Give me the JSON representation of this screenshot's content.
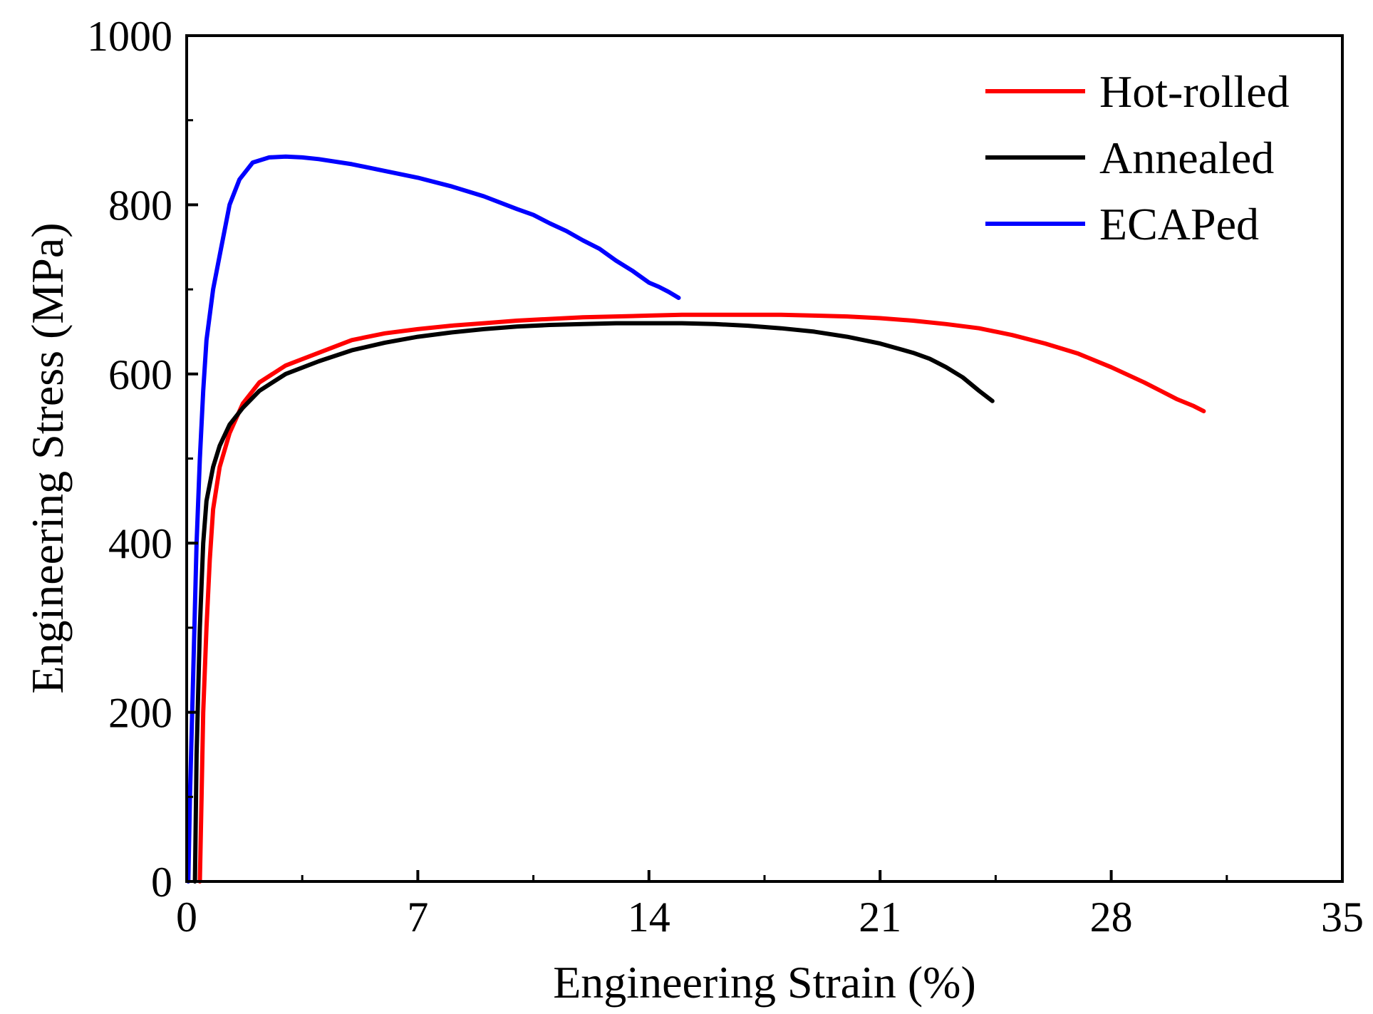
{
  "chart_data": {
    "type": "line",
    "title": "",
    "xlabel": "Engineering Strain (%)",
    "ylabel": "Engineering Stress (MPa)",
    "xlim": [
      0,
      35
    ],
    "ylim": [
      0,
      1000
    ],
    "xticks": [
      0,
      7,
      14,
      21,
      28,
      35
    ],
    "xtick_labels": [
      "0",
      "7",
      "14",
      "21",
      "28",
      "35"
    ],
    "yticks": [
      0,
      200,
      400,
      600,
      800,
      1000
    ],
    "ytick_labels": [
      "0",
      "200",
      "400",
      "600",
      "800",
      "1000"
    ],
    "grid": false,
    "legend_position": "top-right",
    "series": [
      {
        "name": "Hot-rolled",
        "color": "#ff0000",
        "x": [
          0.4,
          0.45,
          0.5,
          0.6,
          0.7,
          0.8,
          1.0,
          1.3,
          1.7,
          2.2,
          3.0,
          4.0,
          5.0,
          6.0,
          7.0,
          8.0,
          9.0,
          10.0,
          11.0,
          12.0,
          13.0,
          14.0,
          15.0,
          16.0,
          17.0,
          18.0,
          19.0,
          20.0,
          21.0,
          22.0,
          23.0,
          24.0,
          25.0,
          26.0,
          27.0,
          28.0,
          29.0,
          29.5,
          30.0,
          30.5,
          30.8
        ],
        "y": [
          0,
          100,
          200,
          300,
          380,
          440,
          490,
          530,
          565,
          590,
          610,
          625,
          640,
          648,
          653,
          657,
          660,
          663,
          665,
          667,
          668,
          669,
          670,
          670,
          670,
          670,
          669,
          668,
          666,
          663,
          659,
          654,
          646,
          636,
          624,
          608,
          590,
          580,
          570,
          562,
          556
        ]
      },
      {
        "name": "Annealed",
        "color": "#000000",
        "x": [
          0.25,
          0.3,
          0.4,
          0.5,
          0.6,
          0.8,
          1.0,
          1.3,
          1.7,
          2.2,
          3.0,
          4.0,
          5.0,
          6.0,
          7.0,
          8.0,
          9.0,
          10.0,
          11.0,
          12.0,
          13.0,
          14.0,
          15.0,
          16.0,
          17.0,
          18.0,
          19.0,
          20.0,
          21.0,
          22.0,
          22.5,
          23.0,
          23.5,
          24.0,
          24.4
        ],
        "y": [
          0,
          150,
          300,
          400,
          450,
          490,
          515,
          540,
          560,
          580,
          600,
          615,
          628,
          637,
          644,
          649,
          653,
          656,
          658,
          659,
          660,
          660,
          660,
          659,
          657,
          654,
          650,
          644,
          636,
          625,
          618,
          608,
          596,
          580,
          568
        ]
      },
      {
        "name": "ECAPed",
        "color": "#0000ff",
        "x": [
          0.05,
          0.1,
          0.2,
          0.3,
          0.4,
          0.5,
          0.6,
          0.8,
          1.0,
          1.3,
          1.6,
          2.0,
          2.5,
          3.0,
          3.5,
          4.0,
          5.0,
          6.0,
          7.0,
          8.0,
          9.0,
          10.0,
          10.5,
          11.0,
          11.5,
          12.0,
          12.5,
          13.0,
          13.5,
          14.0,
          14.3,
          14.6,
          14.9
        ],
        "y": [
          0,
          100,
          250,
          400,
          500,
          580,
          640,
          700,
          740,
          800,
          830,
          850,
          856,
          857,
          856,
          854,
          848,
          840,
          832,
          822,
          810,
          795,
          788,
          778,
          769,
          758,
          748,
          734,
          722,
          708,
          703,
          697,
          690
        ]
      }
    ]
  }
}
